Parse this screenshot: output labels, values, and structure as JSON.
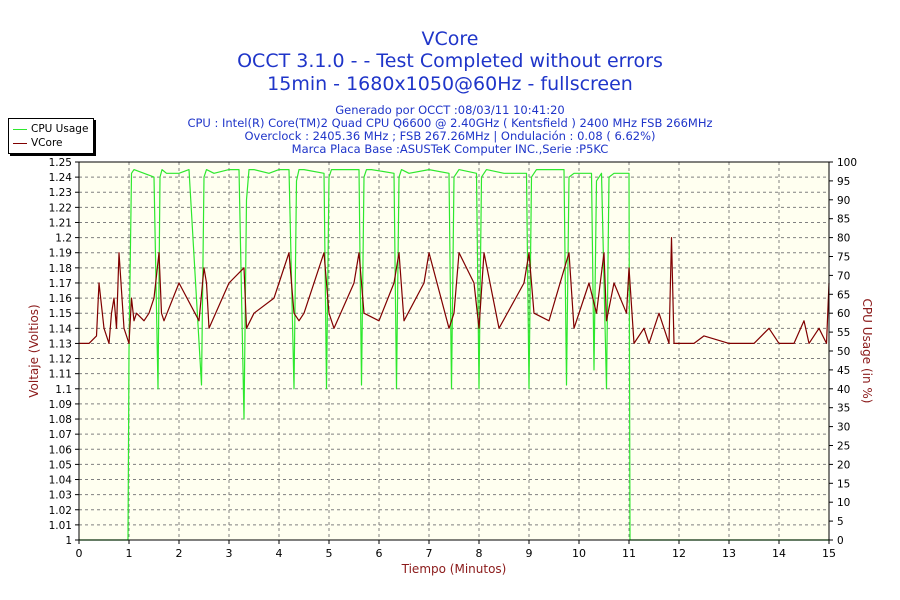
{
  "header": {
    "title": "VCore",
    "line2": "OCCT 3.1.0 -  - Test Completed without errors",
    "line3": "15min - 1680x1050@60Hz - fullscreen",
    "info1": "Generado por OCCT :08/03/11 10:41:20",
    "info2": "CPU : Intel(R) Core(TM)2 Quad CPU Q6600 @ 2.40GHz ( Kentsfield ) 2400 MHz FSB 266MHz",
    "info3": "Overclock : 2405.36 MHz ; FSB 267.26MHz | Ondulación : 0.08 ( 6.62%)",
    "info4": "Marca Placa Base :ASUSTeK Computer INC.,Serie :P5KC"
  },
  "colors": {
    "title": "#1f35c9",
    "cpu": "#2ee82e",
    "vcore": "#800000",
    "plot_bg": "#fffff0",
    "axis_label": "#8b1a1a"
  },
  "chart_data": {
    "type": "line",
    "xlabel": "Tiempo (Minutos)",
    "ylabel": "Voltaje (Voltios)",
    "y2label": "CPU Usage (in %)",
    "xlim": [
      0,
      15
    ],
    "ylim": [
      1,
      1.25
    ],
    "y2lim": [
      0,
      100
    ],
    "x_ticks": [
      "0",
      "1",
      "2",
      "3",
      "4",
      "5",
      "6",
      "7",
      "8",
      "9",
      "10",
      "11",
      "12",
      "13",
      "14",
      "15"
    ],
    "y_ticks": [
      "1",
      "1.01",
      "1.02",
      "1.03",
      "1.04",
      "1.05",
      "1.06",
      "1.07",
      "1.08",
      "1.09",
      "1.1",
      "1.11",
      "1.12",
      "1.13",
      "1.14",
      "1.15",
      "1.16",
      "1.17",
      "1.18",
      "1.19",
      "1.2",
      "1.21",
      "1.22",
      "1.23",
      "1.24",
      "1.25"
    ],
    "y2_ticks": [
      "0",
      "5",
      "10",
      "15",
      "20",
      "25",
      "30",
      "35",
      "40",
      "45",
      "50",
      "55",
      "60",
      "65",
      "70",
      "75",
      "80",
      "85",
      "90",
      "95",
      "100"
    ],
    "grid": true,
    "legend_position": "top-left",
    "series": [
      {
        "name": "CPU Usage",
        "axis": "right",
        "x": [
          0,
          0.98,
          1.0,
          1.05,
          1.1,
          1.3,
          1.5,
          1.58,
          1.62,
          1.66,
          1.75,
          2.0,
          2.2,
          2.45,
          2.5,
          2.55,
          2.7,
          3.0,
          3.2,
          3.3,
          3.35,
          3.4,
          3.5,
          3.8,
          4.0,
          4.2,
          4.3,
          4.35,
          4.4,
          4.5,
          4.9,
          4.95,
          5.0,
          5.05,
          5.2,
          5.6,
          5.65,
          5.7,
          5.75,
          5.85,
          6.3,
          6.35,
          6.4,
          6.45,
          6.6,
          7.0,
          7.4,
          7.45,
          7.5,
          7.6,
          7.95,
          8.0,
          8.05,
          8.15,
          8.5,
          8.95,
          9.0,
          9.05,
          9.15,
          9.7,
          9.75,
          9.8,
          9.9,
          10.25,
          10.3,
          10.35,
          10.45,
          10.55,
          10.6,
          10.7,
          11.0,
          11.02,
          11.05,
          11.5,
          15
        ],
        "values": [
          0,
          0,
          50,
          97,
          98,
          97,
          96,
          40,
          96,
          98,
          97,
          97,
          98,
          41,
          96,
          98,
          97,
          98,
          98,
          32,
          90,
          98,
          98,
          97,
          98,
          98,
          40,
          95,
          98,
          98,
          97,
          40,
          96,
          98,
          98,
          98,
          41,
          96,
          98,
          98,
          97,
          40,
          96,
          98,
          97,
          98,
          97,
          40,
          96,
          98,
          97,
          40,
          96,
          98,
          97,
          97,
          40,
          96,
          98,
          98,
          41,
          96,
          97,
          97,
          45,
          95,
          97,
          40,
          96,
          97,
          97,
          0,
          0,
          0,
          0
        ]
      },
      {
        "name": "VCore",
        "axis": "left",
        "x": [
          0,
          0.2,
          0.35,
          0.4,
          0.5,
          0.6,
          0.65,
          0.7,
          0.75,
          0.8,
          0.9,
          1.0,
          1.05,
          1.1,
          1.15,
          1.3,
          1.4,
          1.5,
          1.6,
          1.65,
          1.7,
          2.0,
          2.4,
          2.5,
          2.55,
          2.6,
          3.0,
          3.3,
          3.35,
          3.5,
          3.9,
          4.0,
          4.2,
          4.3,
          4.4,
          4.5,
          4.9,
          5.0,
          5.1,
          5.5,
          5.6,
          5.7,
          6.0,
          6.3,
          6.4,
          6.5,
          6.9,
          7.0,
          7.4,
          7.5,
          7.6,
          7.9,
          8.0,
          8.1,
          8.4,
          8.9,
          9.0,
          9.1,
          9.4,
          9.8,
          9.9,
          10.2,
          10.35,
          10.5,
          10.55,
          10.7,
          10.95,
          11.0,
          11.1,
          11.3,
          11.4,
          11.6,
          11.8,
          11.85,
          11.9,
          12.0,
          12.3,
          12.5,
          13.0,
          13.3,
          13.5,
          13.8,
          14.0,
          14.3,
          14.5,
          14.6,
          14.8,
          14.95,
          15
        ],
        "values": [
          1.13,
          1.13,
          1.135,
          1.17,
          1.14,
          1.13,
          1.15,
          1.16,
          1.14,
          1.19,
          1.14,
          1.13,
          1.16,
          1.145,
          1.15,
          1.145,
          1.15,
          1.16,
          1.19,
          1.15,
          1.145,
          1.17,
          1.145,
          1.18,
          1.17,
          1.14,
          1.17,
          1.18,
          1.14,
          1.15,
          1.16,
          1.17,
          1.19,
          1.15,
          1.145,
          1.15,
          1.19,
          1.15,
          1.14,
          1.17,
          1.19,
          1.15,
          1.145,
          1.17,
          1.19,
          1.145,
          1.17,
          1.19,
          1.14,
          1.15,
          1.19,
          1.17,
          1.14,
          1.19,
          1.14,
          1.17,
          1.19,
          1.15,
          1.145,
          1.19,
          1.14,
          1.17,
          1.15,
          1.19,
          1.145,
          1.17,
          1.15,
          1.18,
          1.13,
          1.14,
          1.13,
          1.15,
          1.13,
          1.2,
          1.13,
          1.13,
          1.13,
          1.135,
          1.13,
          1.13,
          1.13,
          1.14,
          1.13,
          1.13,
          1.145,
          1.13,
          1.14,
          1.13,
          1.17
        ]
      }
    ]
  }
}
